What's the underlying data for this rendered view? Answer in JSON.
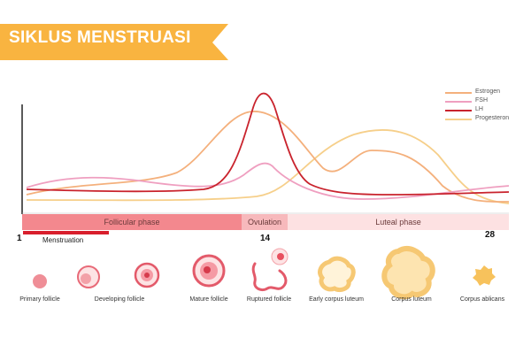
{
  "title": "SIKLUS MENSTRUASI",
  "colors": {
    "banner": "#f9b440",
    "estrogen": "#f4b07c",
    "fsh": "#ef9fc0",
    "lh": "#c9232d",
    "progesteron": "#f6cf8a",
    "follicular": "#f3888e",
    "ovulation": "#f7b9bc",
    "luteal": "#fde1e2",
    "menstruation": "#d81e2c"
  },
  "legend": [
    {
      "label": "Estrogen",
      "color_key": "estrogen"
    },
    {
      "label": "FSH",
      "color_key": "fsh"
    },
    {
      "label": "LH",
      "color_key": "lh"
    },
    {
      "label": "Progesteron",
      "color_key": "progesteron"
    }
  ],
  "phases": {
    "follicular": "Follicular phase",
    "ovulation": "Ovulation",
    "luteal": "Luteal phase"
  },
  "days": {
    "start": "1",
    "mid": "14",
    "end": "28"
  },
  "menstruation": "Menstruation",
  "stages": [
    "Primary follicle",
    "Developing follicle",
    "Mature follicle",
    "Ruptured follicle",
    "Early corpus luteum",
    "Corpus luteum",
    "Corpus ablicans"
  ]
}
